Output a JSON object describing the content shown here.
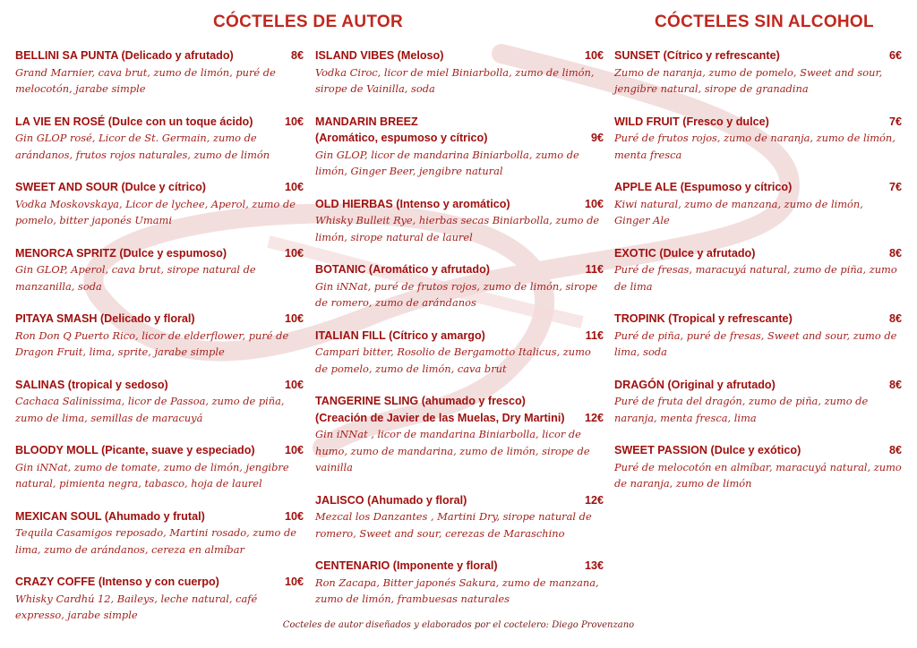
{
  "colors": {
    "heading": "#c0281e",
    "title": "#a0100e",
    "description": "#a3211c",
    "swirl": "#e8c4c4"
  },
  "headings": {
    "autor": "CÓCTELES DE AUTOR",
    "sin_alcohol": "CÓCTELES SIN ALCOHOL"
  },
  "columns": [
    {
      "items": [
        {
          "title": [
            "BELLINI SA PUNTA  (Delicado y afrutado)"
          ],
          "price": "8€",
          "description": "Grand Marnier, cava brut, zumo de limón, puré de melocotón, jarabe simple"
        },
        {
          "title": [
            "LA VIE EN ROSÉ (Dulce con un toque ácido)"
          ],
          "price": "10€",
          "description": "Gin GLOP rosé, Licor de St. Germain, zumo de arándanos, frutos rojos naturales, zumo de limón"
        },
        {
          "title": [
            "SWEET AND SOUR (Dulce y cítrico)"
          ],
          "price": "10€",
          "description": "Vodka Moskovskaya, Licor de lychee, Aperol, zumo de pomelo, bitter japonés Umami"
        },
        {
          "title": [
            "MENORCA SPRITZ (Dulce y espumoso)"
          ],
          "price": "10€",
          "description": "Gin GLOP, Aperol, cava brut, sirope natural de manzanilla, soda"
        },
        {
          "title": [
            "PITAYA SMASH  (Delicado y floral)"
          ],
          "price": "10€",
          "description": "Ron Don Q Puerto Rico, licor de elderflower, puré de Dragon Fruit, lima, sprite, jarabe simple"
        },
        {
          "title": [
            "SALINAS   (tropical y sedoso)"
          ],
          "price": "10€",
          "description": "Cachaca Salinissima, licor de Passoa, zumo de piña, zumo de lima, semillas de maracuyá"
        },
        {
          "title": [
            "BLOODY MOLL (Picante, suave y especiado)"
          ],
          "price": "10€",
          "description": "Gin iNNat, zumo de tomate, zumo de limón, jengibre natural, pimienta negra, tabasco, hoja de laurel"
        },
        {
          "title": [
            "MEXICAN SOUL  (Ahumado y frutal)"
          ],
          "price": "10€",
          "description": "Tequila Casamigos reposado, Martini rosado, zumo de lima, zumo de arándanos, cereza en almíbar"
        },
        {
          "title": [
            "CRAZY COFFE (Intenso y con cuerpo)"
          ],
          "price": "10€",
          "description": "Whisky Cardhú 12, Baileys, leche natural, café expresso, jarabe simple"
        }
      ]
    },
    {
      "items": [
        {
          "title": [
            "ISLAND VIBES  (Meloso)"
          ],
          "price": "10€",
          "description": "Vodka Ciroc, licor de miel Biniarbolla, zumo de limón, sirope de Vainilla, soda"
        },
        {
          "title": [
            "MANDARIN BREEZ",
            "(Aromático, espumoso y cítrico)"
          ],
          "price": "9€",
          "description": "Gin GLOP, licor de mandarina Biniarbolla, zumo de limón, Ginger Beer, jengibre natural"
        },
        {
          "title": [
            "OLD HIERBAS (Intenso y aromático)"
          ],
          "price": "10€",
          "description": "Whisky Bulleit Rye, hierbas secas Biniarbolla, zumo de limón, sirope natural de laurel"
        },
        {
          "title": [
            "BOTANIC (Aromático y afrutado)"
          ],
          "price": "11€",
          "description": "Gin iNNat, puré de frutos rojos, zumo de limón, sirope de romero, zumo de arándanos"
        },
        {
          "title": [
            "ITALIAN FILL  (Cítrico y amargo)"
          ],
          "price": "11€",
          "description": "Campari bitter, Rosolio de Bergamotto Italicus, zumo de pomelo, zumo de limón, cava brut"
        },
        {
          "title": [
            "TANGERINE SLING  (ahumado y fresco)",
            "(Creación de Javier de las Muelas, Dry Martini)"
          ],
          "price": "12€",
          "description": "Gin iNNat , licor de mandarina Biniarbolla, licor de humo, zumo de mandarina, zumo de limón, sirope de vainilla"
        },
        {
          "title": [
            "JALISCO (Ahumado y floral)"
          ],
          "price": "12€",
          "description": "Mezcal los Danzantes , Martini Dry, sirope natural de romero, Sweet and sour, cerezas de Maraschino"
        },
        {
          "title": [
            "CENTENARIO  (Imponente y floral)"
          ],
          "price": "13€",
          "description": "Ron Zacapa, Bitter japonés Sakura, zumo de manzana, zumo de limón, frambuesas naturales"
        }
      ]
    },
    {
      "items": [
        {
          "title": [
            "SUNSET (Cítrico y refrescante)"
          ],
          "price": "6€",
          "description": "Zumo de naranja, zumo de pomelo, Sweet and sour, jengibre natural, sirope de granadina"
        },
        {
          "title": [
            "WILD FRUIT (Fresco y dulce)"
          ],
          "price": "7€",
          "description": "Puré de frutos rojos, zumo de naranja, zumo de limón, menta fresca"
        },
        {
          "title": [
            "APPLE ALE  (Espumoso y cítrico)"
          ],
          "price": "7€",
          "description": "Kiwi natural, zumo de manzana, zumo de limón, Ginger Ale"
        },
        {
          "title": [
            "EXOTIC (Dulce y afrutado)"
          ],
          "price": "8€",
          "description": "Puré de fresas, maracuyá natural, zumo de piña, zumo de lima"
        },
        {
          "title": [
            "TROPINK  (Tropical y refrescante)"
          ],
          "price": "8€",
          "description": "Puré de piña, puré de fresas, Sweet and sour, zumo de lima, soda"
        },
        {
          "title": [
            "DRAGÓN  (Original y afrutado)"
          ],
          "price": "8€",
          "description": "Puré de fruta del dragón, zumo de piña, zumo de naranja, menta fresca, lima"
        },
        {
          "title": [
            "SWEET PASSION  (Dulce y exótico)"
          ],
          "price": "8€",
          "description": "Puré de melocotón en almíbar, maracuyá natural, zumo de naranja, zumo de limón"
        }
      ]
    }
  ],
  "footer": "Cocteles de autor diseñados y elaborados por el coctelero: Diego Provenzano"
}
